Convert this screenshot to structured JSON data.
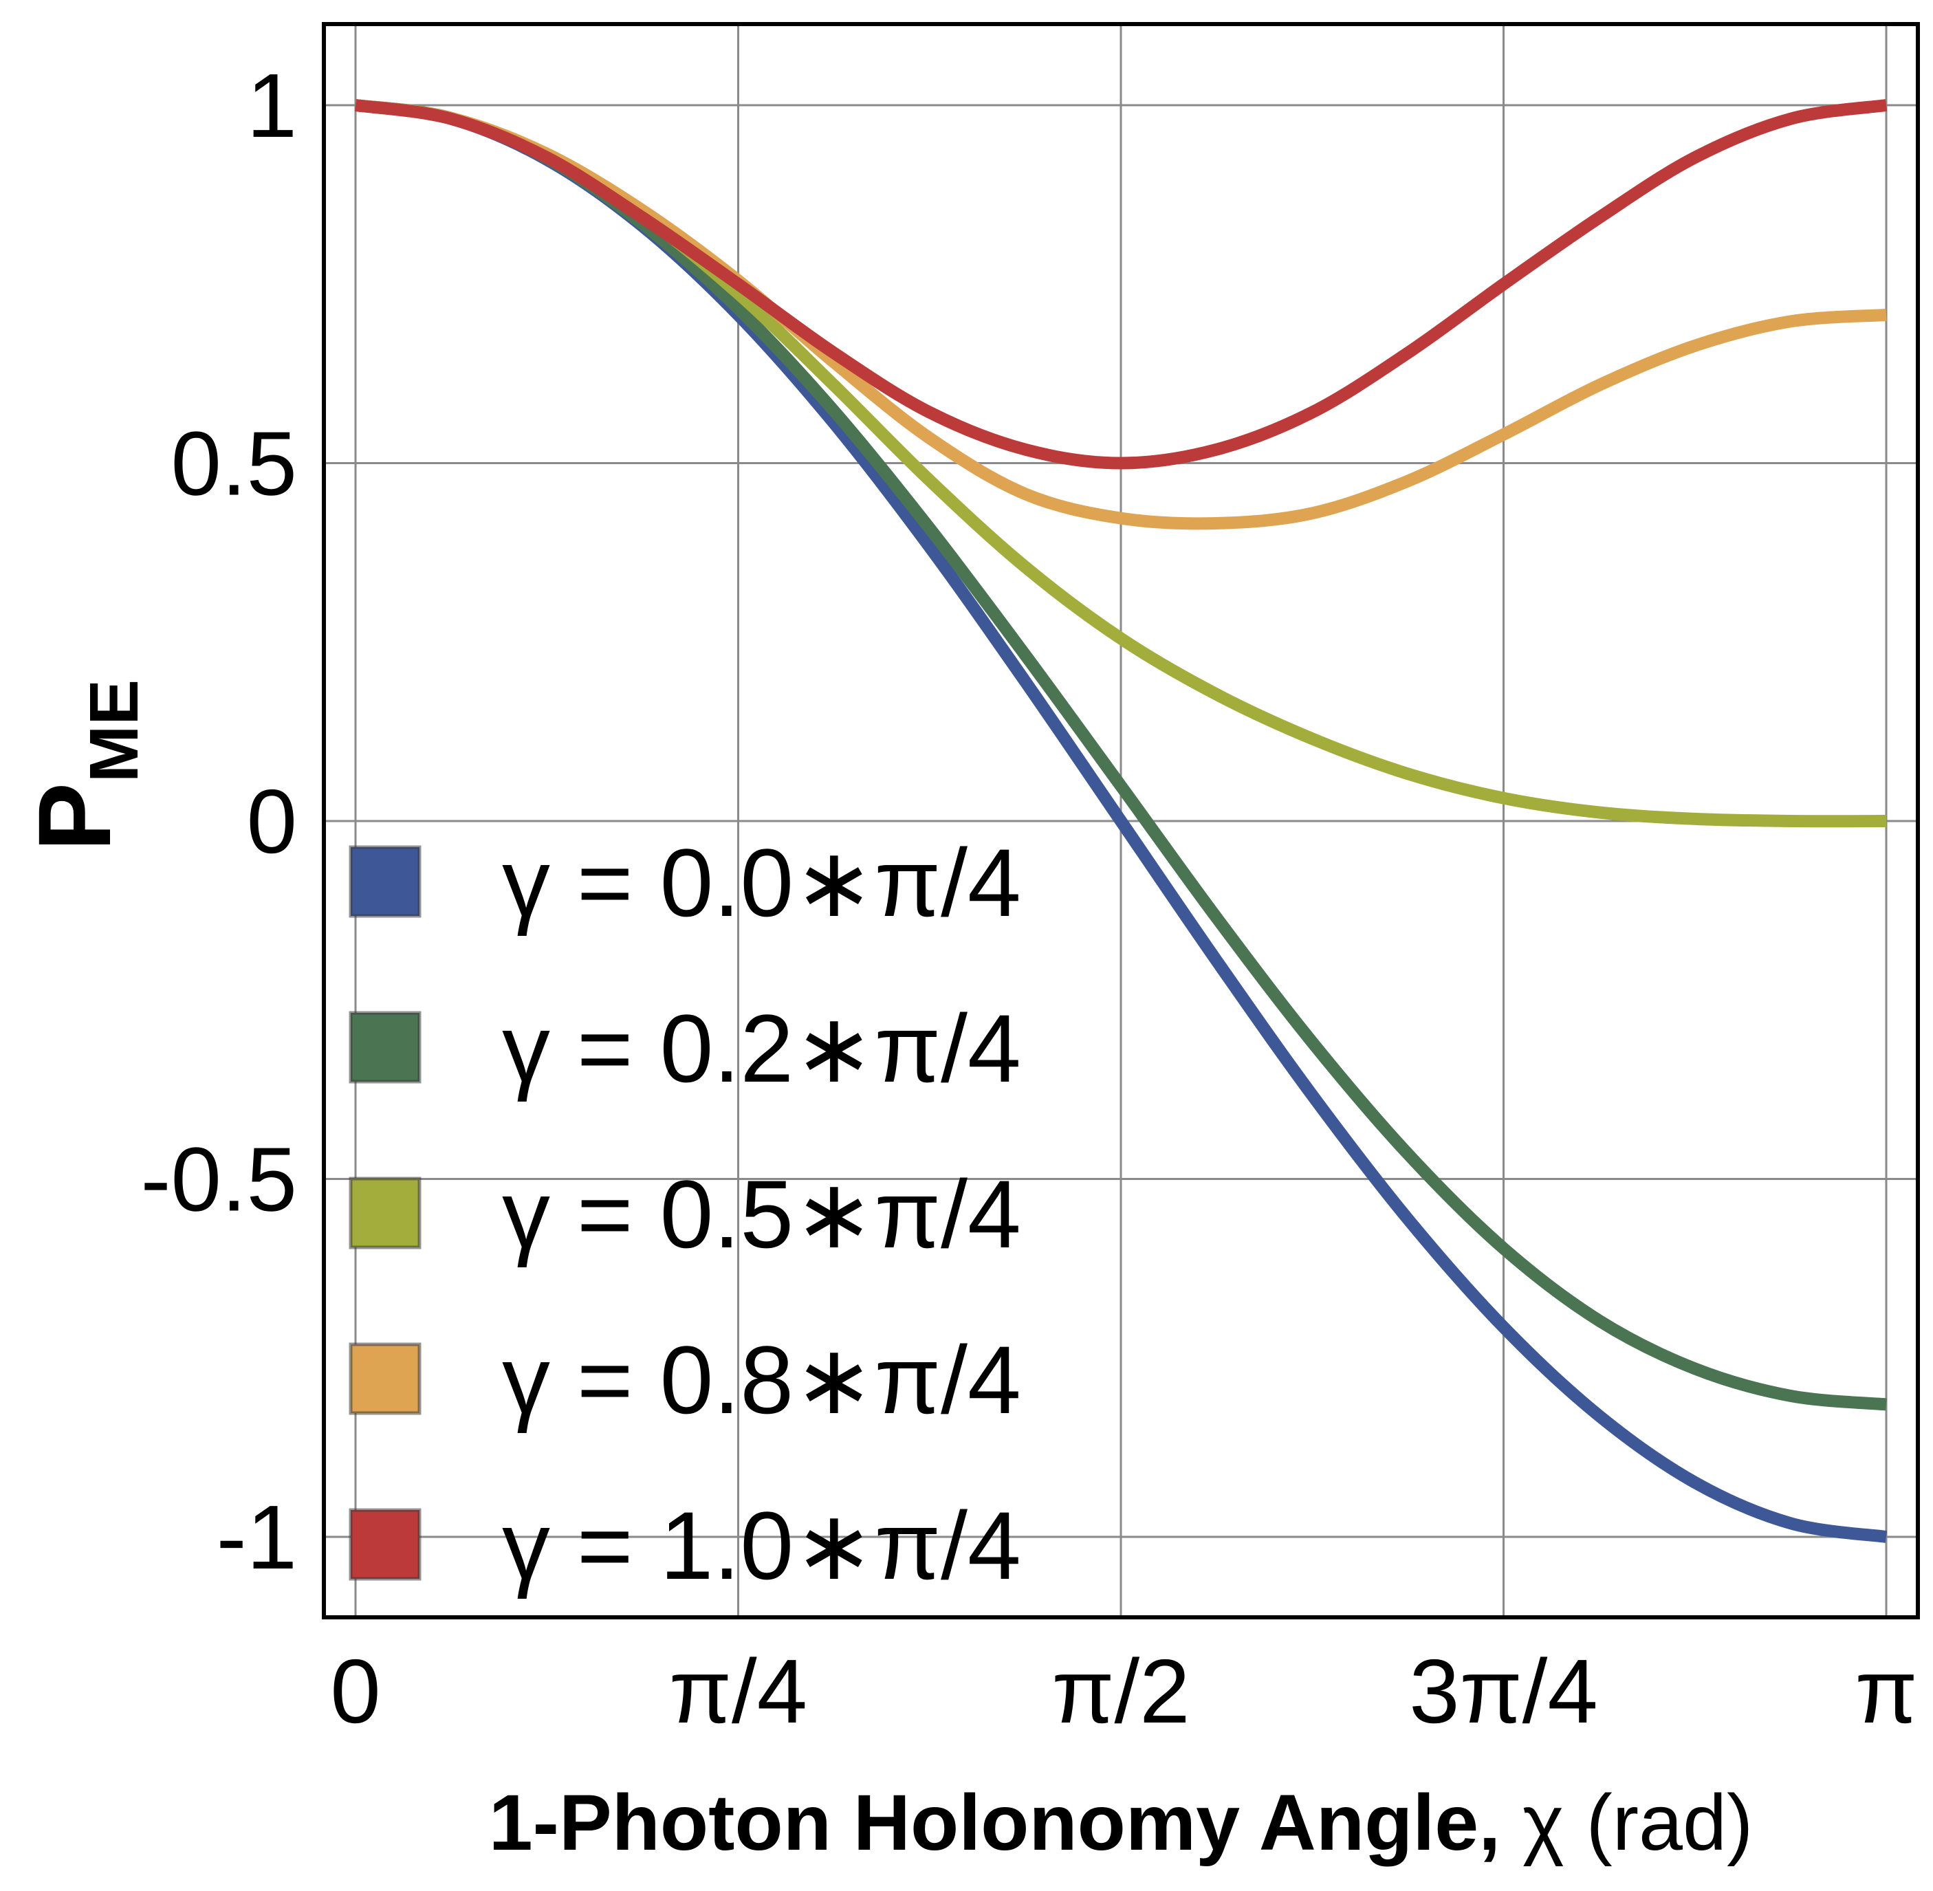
{
  "chart_data": {
    "type": "line",
    "xlabel": {
      "bold_part": "1-Photon  Holonomy Angle,",
      "regular_part": " χ (rad)"
    },
    "ylabel": {
      "main": "P",
      "sub": "ME"
    },
    "xlim": [
      0,
      3.14159265
    ],
    "ylim": [
      -1.11,
      1.11
    ],
    "grid": true,
    "x_ticks": [
      {
        "value": 0,
        "label": "0"
      },
      {
        "value": 0.78539816,
        "label": "π/4"
      },
      {
        "value": 1.57079633,
        "label": "π/2"
      },
      {
        "value": 2.35619449,
        "label": "3π/4"
      },
      {
        "value": 3.14159265,
        "label": "π"
      }
    ],
    "y_ticks": [
      {
        "value": 1,
        "label": "1"
      },
      {
        "value": 0.5,
        "label": "0.5"
      },
      {
        "value": 0,
        "label": "0"
      },
      {
        "value": -0.5,
        "label": "-0.5"
      },
      {
        "value": -1,
        "label": "-1"
      }
    ],
    "legend_position": "bottom-left",
    "series": [
      {
        "name": "γ = 0.0∗π/4",
        "gamma_factor": 0.0,
        "color": "#3e5797",
        "x": [
          0,
          0.19635,
          0.3927,
          0.58905,
          0.7854,
          0.98175,
          1.1781,
          1.37445,
          1.5708,
          1.76715,
          1.9635,
          2.15985,
          2.3562,
          2.55255,
          2.7489,
          2.94525,
          3.14159
        ],
        "y": [
          1,
          0.981,
          0.924,
          0.831,
          0.707,
          0.556,
          0.383,
          0.195,
          0,
          -0.195,
          -0.383,
          -0.556,
          -0.707,
          -0.831,
          -0.924,
          -0.981,
          -1
        ]
      },
      {
        "name": "γ = 0.2∗π/4",
        "gamma_factor": 0.2,
        "color": "#4a7452",
        "x": [
          0,
          0.19635,
          0.3927,
          0.58905,
          0.7854,
          0.98175,
          1.1781,
          1.37445,
          1.5708,
          1.76715,
          1.9635,
          2.15985,
          2.3562,
          2.55255,
          2.7489,
          2.94525,
          3.14159
        ],
        "y": [
          1,
          0.982,
          0.926,
          0.834,
          0.716,
          0.573,
          0.409,
          0.232,
          0.049,
          -0.135,
          -0.309,
          -0.465,
          -0.597,
          -0.698,
          -0.765,
          -0.803,
          -0.815
        ]
      },
      {
        "name": "γ = 0.5∗π/4",
        "gamma_factor": 0.5,
        "color": "#a3ad3c",
        "x": [
          0,
          0.19635,
          0.3927,
          0.58905,
          0.7854,
          0.98175,
          1.1781,
          1.37445,
          1.5708,
          1.76715,
          1.9635,
          2.15985,
          2.3562,
          2.55255,
          2.7489,
          2.94525,
          3.14159
        ],
        "y": [
          1,
          0.982,
          0.929,
          0.846,
          0.737,
          0.609,
          0.476,
          0.355,
          0.255,
          0.177,
          0.115,
          0.066,
          0.032,
          0.012,
          0.003,
          0.0,
          0.0
        ]
      },
      {
        "name": "γ = 0.8∗π/4",
        "gamma_factor": 0.8,
        "color": "#dea451",
        "x": [
          0,
          0.19635,
          0.3927,
          0.58905,
          0.7854,
          0.98175,
          1.1781,
          1.37445,
          1.5708,
          1.76715,
          1.9635,
          2.15985,
          2.3562,
          2.55255,
          2.7489,
          2.94525,
          3.14159
        ],
        "y": [
          1,
          0.982,
          0.932,
          0.853,
          0.755,
          0.641,
          0.535,
          0.457,
          0.423,
          0.416,
          0.43,
          0.475,
          0.54,
          0.609,
          0.664,
          0.698,
          0.707
        ]
      },
      {
        "name": "γ = 1.0∗π/4",
        "gamma_factor": 1.0,
        "color": "#bd3a3b",
        "x": [
          0,
          0.19635,
          0.3927,
          0.58905,
          0.7854,
          0.98175,
          1.1781,
          1.37445,
          1.5708,
          1.76715,
          1.9635,
          2.15985,
          2.3562,
          2.55255,
          2.7489,
          2.94525,
          3.14159
        ],
        "y": [
          1,
          0.981,
          0.927,
          0.843,
          0.75,
          0.654,
          0.571,
          0.519,
          0.5,
          0.519,
          0.571,
          0.654,
          0.75,
          0.843,
          0.927,
          0.981,
          1
        ]
      }
    ]
  }
}
